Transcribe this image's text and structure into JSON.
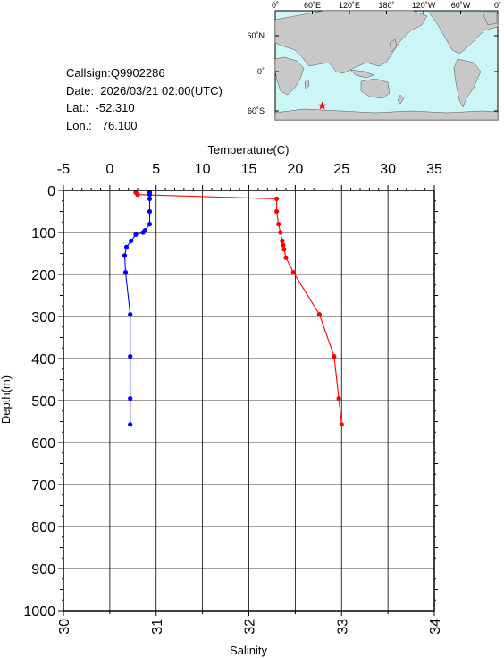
{
  "info": {
    "callsign": "Callsign:Q9902286",
    "date": "Date:  2026/03/21 02:00(UTC)",
    "lat": "Lat.:  -52.310",
    "lon": "Lon.:   76.100"
  },
  "map": {
    "top_labels": [
      "0˚",
      "60˚E",
      "120˚E",
      "180˚",
      "120˚W",
      "60˚W",
      "0˚"
    ],
    "lat_labels": [
      "60˚N",
      "0˚",
      "60˚S"
    ],
    "ocean_color": "#ccf5f5",
    "land_color": "#c8c8c8",
    "marker_color": "#ff0000",
    "marker_icon": "star-icon",
    "marker_lon": 76.1,
    "marker_lat": -52.31
  },
  "chart_data": {
    "type": "line",
    "ylabel": "Depth(m)",
    "ylim": [
      1000,
      0
    ],
    "yticks": [
      "0",
      "100",
      "200",
      "300",
      "400",
      "500",
      "600",
      "700",
      "800",
      "900",
      "1000"
    ],
    "top_axis": {
      "label": "Temperature(C)",
      "range": [
        -5,
        35
      ],
      "ticks": [
        "-5",
        "0",
        "5",
        "10",
        "15",
        "20",
        "25",
        "30",
        "35"
      ]
    },
    "bottom_axis": {
      "label": "Salinity",
      "range": [
        30,
        34
      ],
      "ticks": [
        "30",
        "31",
        "32",
        "33",
        "34"
      ]
    },
    "grid": true,
    "series": [
      {
        "axis": "temperature",
        "color": "#ff0000",
        "depth": [
          5,
          10,
          20,
          50,
          80,
          100,
          120,
          130,
          140,
          160,
          195,
          295,
          395,
          495,
          557
        ],
        "values": [
          2.8,
          3.0,
          18.0,
          18.0,
          18.2,
          18.4,
          18.6,
          18.7,
          18.8,
          19.0,
          19.8,
          22.6,
          24.2,
          24.7,
          25.0
        ]
      },
      {
        "axis": "salinity",
        "color": "#0000ff",
        "depth": [
          5,
          10,
          20,
          50,
          80,
          95,
          100,
          105,
          120,
          135,
          155,
          195,
          295,
          395,
          495,
          557
        ],
        "values": [
          30.93,
          30.93,
          30.93,
          30.93,
          30.93,
          30.88,
          30.86,
          30.78,
          30.73,
          30.68,
          30.66,
          30.67,
          30.72,
          30.72,
          30.72,
          30.72
        ]
      }
    ]
  }
}
